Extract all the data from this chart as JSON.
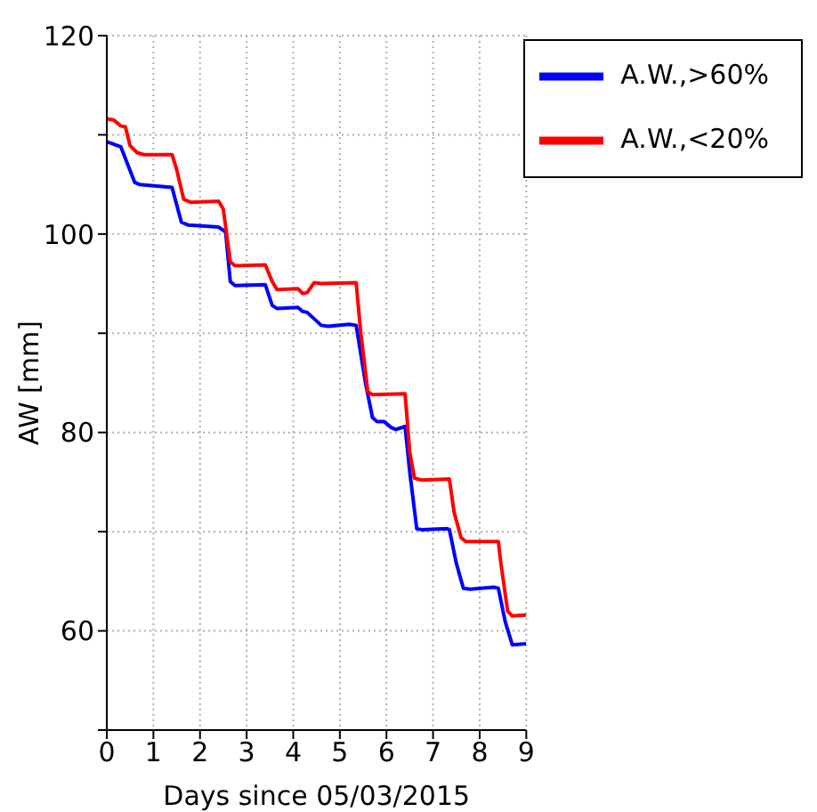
{
  "chart_data": {
    "type": "line",
    "xlabel": "Days since 05/03/2015",
    "ylabel": "AW [mm]",
    "xlim": [
      0,
      9
    ],
    "xticks": [
      0,
      1,
      2,
      3,
      4,
      5,
      6,
      7,
      8,
      9
    ],
    "ylim": [
      50,
      120
    ],
    "yticks": [
      {
        "value": 50,
        "label": null
      },
      60,
      {
        "value": 70,
        "label": null
      },
      80,
      {
        "value": 90,
        "label": null
      },
      100,
      {
        "value": 110,
        "label": null
      },
      120
    ],
    "grid": true,
    "legend": "top right",
    "marker": "none",
    "line_style": "solid",
    "series": [
      {
        "name": "A.W.,>60%",
        "color": "#0000ff",
        "x": [
          0,
          0.3,
          0.6,
          0.7,
          1.4,
          1.6,
          1.75,
          2.4,
          2.55,
          2.65,
          2.75,
          3.4,
          3.55,
          3.65,
          4.1,
          4.2,
          4.3,
          4.6,
          4.75,
          5.2,
          5.35,
          5.55,
          5.7,
          5.8,
          5.95,
          6.1,
          6.2,
          6.4,
          6.5,
          6.65,
          6.75,
          7.3,
          7.35,
          7.5,
          7.65,
          7.8,
          8.3,
          8.4,
          8.55,
          8.7,
          9
        ],
        "values": [
          109.3,
          108.8,
          105.2,
          105,
          104.7,
          101.2,
          100.9,
          100.7,
          100.2,
          95.2,
          94.8,
          94.9,
          92.8,
          92.5,
          92.6,
          92.2,
          92.1,
          90.8,
          90.7,
          90.9,
          90.8,
          85,
          81.5,
          81.1,
          81.1,
          80.5,
          80.3,
          80.6,
          76,
          70.3,
          70.2,
          70.3,
          70.2,
          66.8,
          64.3,
          64.2,
          64.4,
          64.3,
          60.9,
          58.6,
          58.7
        ]
      },
      {
        "name": "A.W.,<20%",
        "color": "#ff0000",
        "x": [
          0,
          0.15,
          0.3,
          0.4,
          0.5,
          0.65,
          0.8,
          1.4,
          1.5,
          1.65,
          1.8,
          2.4,
          2.5,
          2.65,
          2.75,
          3.4,
          3.55,
          3.65,
          4.1,
          4.2,
          4.3,
          4.45,
          4.6,
          5.35,
          5.45,
          5.6,
          5.7,
          6.4,
          6.5,
          6.6,
          6.75,
          7.35,
          7.45,
          7.6,
          7.7,
          8.4,
          8.45,
          8.6,
          8.7,
          9
        ],
        "values": [
          111.6,
          111.5,
          110.9,
          110.8,
          108.9,
          108.2,
          108,
          108,
          106.5,
          103.5,
          103.2,
          103.3,
          102.5,
          97.2,
          96.8,
          96.9,
          95.2,
          94.4,
          94.5,
          94,
          94.1,
          95.1,
          95,
          95.1,
          90,
          84.1,
          83.8,
          83.9,
          78,
          75.4,
          75.2,
          75.3,
          72,
          69.4,
          69,
          69,
          67,
          62,
          61.5,
          61.6
        ]
      }
    ]
  }
}
